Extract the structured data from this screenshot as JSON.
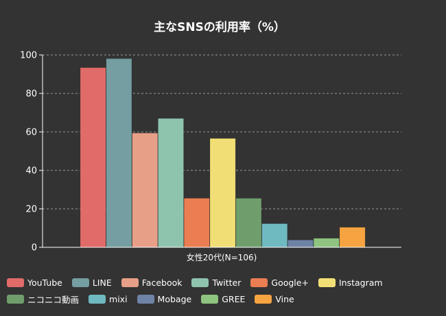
{
  "chart_data": {
    "type": "bar",
    "title": "主なSNSの利用率（%）",
    "categories": [
      "女性20代(N=106)"
    ],
    "ylim": [
      0,
      100
    ],
    "yticks": [
      0,
      20,
      40,
      60,
      80,
      100
    ],
    "grid": true,
    "legend_position": "bottom",
    "series": [
      {
        "name": "YouTube",
        "color": "#e06b69",
        "values": [
          93.4
        ]
      },
      {
        "name": "LINE",
        "color": "#749ea1",
        "values": [
          98.1
        ]
      },
      {
        "name": "Facebook",
        "color": "#e89f88",
        "values": [
          59.4
        ]
      },
      {
        "name": "Twitter",
        "color": "#8ec4ae",
        "values": [
          67.0
        ]
      },
      {
        "name": "Google+",
        "color": "#ea7e52",
        "values": [
          25.5
        ]
      },
      {
        "name": "Instagram",
        "color": "#f1df76",
        "values": [
          56.6
        ]
      },
      {
        "name": "ニコニコ動画",
        "color": "#6f9e6c",
        "values": [
          25.5
        ]
      },
      {
        "name": "mixi",
        "color": "#6fb9c0",
        "values": [
          12.3
        ]
      },
      {
        "name": "Mobage",
        "color": "#6e83a6",
        "values": [
          3.8
        ]
      },
      {
        "name": "GREE",
        "color": "#8ec47f",
        "values": [
          4.7
        ]
      },
      {
        "name": "Vine",
        "color": "#f6a341",
        "values": [
          10.4
        ]
      }
    ]
  }
}
